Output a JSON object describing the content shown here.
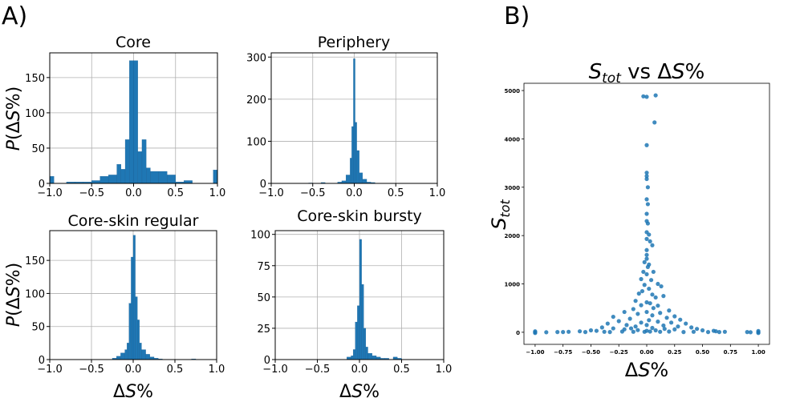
{
  "panel_labels": [
    "A)",
    "B)"
  ],
  "chart_data": [
    {
      "type": "bar",
      "subtype": "histogram",
      "title": "Core",
      "xlabel": "",
      "ylabel": "P(ΔS%)",
      "xlim": [
        -1.0,
        1.0
      ],
      "ylim": [
        0,
        185
      ],
      "xticks": [
        "−1.0",
        "−0.5",
        "0.0",
        "0.5",
        "1.0"
      ],
      "yticks": [
        "0",
        "50",
        "100",
        "150"
      ],
      "grid": true,
      "color": "#1f77b4",
      "bins": [
        {
          "x0": -1.0,
          "x1": -0.95,
          "v": 10
        },
        {
          "x0": -0.8,
          "x1": -0.7,
          "v": 2
        },
        {
          "x0": -0.7,
          "x1": -0.6,
          "v": 2
        },
        {
          "x0": -0.6,
          "x1": -0.5,
          "v": 2
        },
        {
          "x0": -0.5,
          "x1": -0.4,
          "v": 4
        },
        {
          "x0": -0.4,
          "x1": -0.3,
          "v": 10
        },
        {
          "x0": -0.3,
          "x1": -0.2,
          "v": 12
        },
        {
          "x0": -0.2,
          "x1": -0.15,
          "v": 27
        },
        {
          "x0": -0.15,
          "x1": -0.1,
          "v": 20
        },
        {
          "x0": -0.1,
          "x1": -0.05,
          "v": 62
        },
        {
          "x0": -0.05,
          "x1": 0.0,
          "v": 174
        },
        {
          "x0": 0.0,
          "x1": 0.05,
          "v": 174
        },
        {
          "x0": 0.05,
          "x1": 0.1,
          "v": 45
        },
        {
          "x0": 0.1,
          "x1": 0.15,
          "v": 62
        },
        {
          "x0": 0.15,
          "x1": 0.2,
          "v": 22
        },
        {
          "x0": 0.2,
          "x1": 0.3,
          "v": 17
        },
        {
          "x0": 0.3,
          "x1": 0.4,
          "v": 17
        },
        {
          "x0": 0.4,
          "x1": 0.5,
          "v": 12
        },
        {
          "x0": 0.5,
          "x1": 0.6,
          "v": 2
        },
        {
          "x0": 0.6,
          "x1": 0.7,
          "v": 4
        },
        {
          "x0": 0.95,
          "x1": 1.0,
          "v": 19
        }
      ]
    },
    {
      "type": "bar",
      "subtype": "histogram",
      "title": "Periphery",
      "xlabel": "",
      "ylabel": "",
      "xlim": [
        -1.0,
        1.0
      ],
      "ylim": [
        0,
        310
      ],
      "xticks": [
        "−1.0",
        "−0.5",
        "0.0",
        "0.5",
        "1.0"
      ],
      "yticks": [
        "0",
        "100",
        "200",
        "300"
      ],
      "grid": true,
      "color": "#1f77b4",
      "bins": [
        {
          "x0": -0.55,
          "x1": -0.5,
          "v": 1
        },
        {
          "x0": -0.4,
          "x1": -0.35,
          "v": 2
        },
        {
          "x0": -0.2,
          "x1": -0.15,
          "v": 3
        },
        {
          "x0": -0.15,
          "x1": -0.1,
          "v": 6
        },
        {
          "x0": -0.1,
          "x1": -0.05,
          "v": 20
        },
        {
          "x0": -0.05,
          "x1": -0.03,
          "v": 60
        },
        {
          "x0": -0.03,
          "x1": -0.01,
          "v": 135
        },
        {
          "x0": -0.01,
          "x1": 0.01,
          "v": 296
        },
        {
          "x0": 0.01,
          "x1": 0.03,
          "v": 145
        },
        {
          "x0": 0.03,
          "x1": 0.06,
          "v": 78
        },
        {
          "x0": 0.06,
          "x1": 0.1,
          "v": 25
        },
        {
          "x0": 0.1,
          "x1": 0.15,
          "v": 10
        },
        {
          "x0": 0.15,
          "x1": 0.2,
          "v": 3
        },
        {
          "x0": 0.2,
          "x1": 0.25,
          "v": 2
        }
      ]
    },
    {
      "type": "bar",
      "subtype": "histogram",
      "title": "Core-skin regular",
      "xlabel": "ΔS%",
      "ylabel": "P(ΔS%)",
      "xlim": [
        -1.0,
        1.0
      ],
      "ylim": [
        0,
        195
      ],
      "xticks": [
        "−1.0",
        "−0.5",
        "0.0",
        "0.5",
        "1.0"
      ],
      "yticks": [
        "0",
        "50",
        "100",
        "150"
      ],
      "grid": true,
      "color": "#1f77b4",
      "bins": [
        {
          "x0": -0.25,
          "x1": -0.2,
          "v": 2
        },
        {
          "x0": -0.2,
          "x1": -0.15,
          "v": 5
        },
        {
          "x0": -0.15,
          "x1": -0.1,
          "v": 10
        },
        {
          "x0": -0.1,
          "x1": -0.075,
          "v": 15
        },
        {
          "x0": -0.075,
          "x1": -0.05,
          "v": 25
        },
        {
          "x0": -0.05,
          "x1": -0.025,
          "v": 85
        },
        {
          "x0": -0.025,
          "x1": 0.0,
          "v": 155
        },
        {
          "x0": 0.0,
          "x1": 0.025,
          "v": 188
        },
        {
          "x0": 0.025,
          "x1": 0.05,
          "v": 95
        },
        {
          "x0": 0.05,
          "x1": 0.075,
          "v": 60
        },
        {
          "x0": 0.075,
          "x1": 0.1,
          "v": 25
        },
        {
          "x0": 0.1,
          "x1": 0.15,
          "v": 15
        },
        {
          "x0": 0.15,
          "x1": 0.2,
          "v": 8
        },
        {
          "x0": 0.2,
          "x1": 0.25,
          "v": 4
        },
        {
          "x0": 0.25,
          "x1": 0.3,
          "v": 2
        },
        {
          "x0": 0.3,
          "x1": 0.35,
          "v": 1
        },
        {
          "x0": 0.7,
          "x1": 0.75,
          "v": 1
        }
      ]
    },
    {
      "type": "bar",
      "subtype": "histogram",
      "title": "Core-skin bursty",
      "xlabel": "ΔS%",
      "ylabel": "",
      "xlim": [
        -1.0,
        1.0
      ],
      "ylim": [
        0,
        103
      ],
      "xticks": [
        "−1.0",
        "−0.5",
        "0.0",
        "0.5",
        "1.0"
      ],
      "yticks": [
        "0",
        "25",
        "50",
        "75",
        "100"
      ],
      "grid": true,
      "color": "#1f77b4",
      "bins": [
        {
          "x0": -0.15,
          "x1": -0.1,
          "v": 2
        },
        {
          "x0": -0.1,
          "x1": -0.075,
          "v": 3
        },
        {
          "x0": -0.075,
          "x1": -0.05,
          "v": 8
        },
        {
          "x0": -0.05,
          "x1": -0.025,
          "v": 30
        },
        {
          "x0": -0.025,
          "x1": 0.0,
          "v": 43
        },
        {
          "x0": 0.0,
          "x1": 0.025,
          "v": 96
        },
        {
          "x0": 0.025,
          "x1": 0.05,
          "v": 60
        },
        {
          "x0": 0.05,
          "x1": 0.075,
          "v": 25
        },
        {
          "x0": 0.075,
          "x1": 0.1,
          "v": 10
        },
        {
          "x0": 0.1,
          "x1": 0.15,
          "v": 5
        },
        {
          "x0": 0.15,
          "x1": 0.2,
          "v": 3
        },
        {
          "x0": 0.2,
          "x1": 0.25,
          "v": 2
        },
        {
          "x0": 0.25,
          "x1": 0.3,
          "v": 1
        },
        {
          "x0": 0.3,
          "x1": 0.35,
          "v": 1
        },
        {
          "x0": 0.4,
          "x1": 0.45,
          "v": 2
        },
        {
          "x0": 0.45,
          "x1": 0.5,
          "v": 1
        }
      ]
    },
    {
      "type": "scatter",
      "title_parts": {
        "main": "S",
        "sub": "tot",
        "rest": " vs ΔS%"
      },
      "xlabel": "ΔS%",
      "ylabel_parts": {
        "main": "S",
        "sub": "tot"
      },
      "xlim": [
        -1.1,
        1.1
      ],
      "ylim": [
        -250,
        5150
      ],
      "xticks": [
        "−1.00",
        "−0.75",
        "−0.50",
        "−0.25",
        "0.00",
        "0.25",
        "0.50",
        "0.75",
        "1.00"
      ],
      "yticks": [
        "0",
        "1000",
        "2000",
        "3000",
        "4000",
        "5000"
      ],
      "grid": false,
      "color": "#1f77b4",
      "points": [
        [
          -0.03,
          4880
        ],
        [
          0.0,
          4870
        ],
        [
          0.08,
          4900
        ],
        [
          0.07,
          4340
        ],
        [
          0.0,
          3870
        ],
        [
          0.0,
          3300
        ],
        [
          0.0,
          3230
        ],
        [
          0.0,
          3170
        ],
        [
          0.01,
          3000
        ],
        [
          0.0,
          2750
        ],
        [
          0.01,
          2650
        ],
        [
          0.0,
          2450
        ],
        [
          0.0,
          2300
        ],
        [
          0.01,
          2250
        ],
        [
          0.0,
          2070
        ],
        [
          0.02,
          2020
        ],
        [
          0.0,
          1930
        ],
        [
          0.03,
          1880
        ],
        [
          0.05,
          1800
        ],
        [
          0.0,
          1700
        ],
        [
          0.0,
          1600
        ],
        [
          0.0,
          1520
        ],
        [
          -0.02,
          1450
        ],
        [
          0.02,
          1400
        ],
        [
          0.01,
          1350
        ],
        [
          -0.03,
          1250
        ],
        [
          0.06,
          1250
        ],
        [
          0.0,
          1200
        ],
        [
          -0.05,
          1100
        ],
        [
          0.04,
          1080
        ],
        [
          0.1,
          1000
        ],
        [
          -0.02,
          980
        ],
        [
          0.13,
          950
        ],
        [
          0.02,
          900
        ],
        [
          -0.04,
          850
        ],
        [
          -0.07,
          800
        ],
        [
          0.05,
          780
        ],
        [
          0.08,
          720
        ],
        [
          0.15,
          750
        ],
        [
          -0.1,
          650
        ],
        [
          0.0,
          620
        ],
        [
          0.03,
          600
        ],
        [
          -0.05,
          560
        ],
        [
          0.1,
          550
        ],
        [
          0.06,
          500
        ],
        [
          -0.12,
          480
        ],
        [
          0.2,
          450
        ],
        [
          0.0,
          420
        ],
        [
          -0.2,
          420
        ],
        [
          0.12,
          400
        ],
        [
          -0.08,
          380
        ],
        [
          0.05,
          350
        ],
        [
          0.25,
          330
        ],
        [
          -0.3,
          320
        ],
        [
          0.18,
          300
        ],
        [
          -0.15,
          280
        ],
        [
          0.3,
          260
        ],
        [
          0.02,
          250
        ],
        [
          -0.25,
          230
        ],
        [
          0.1,
          220
        ],
        [
          -0.05,
          200
        ],
        [
          0.22,
          200
        ],
        [
          -0.35,
          180
        ],
        [
          0.35,
          180
        ],
        [
          0.0,
          150
        ],
        [
          -0.18,
          150
        ],
        [
          0.15,
          140
        ],
        [
          -0.1,
          120
        ],
        [
          0.28,
          120
        ],
        [
          -0.4,
          100
        ],
        [
          0.4,
          100
        ],
        [
          0.05,
          90
        ],
        [
          -0.3,
          80
        ],
        [
          0.45,
          70
        ],
        [
          -0.2,
          60
        ],
        [
          0.25,
          60
        ],
        [
          -0.5,
          40
        ],
        [
          0.5,
          40
        ],
        [
          0.0,
          30
        ],
        [
          -0.45,
          30
        ],
        [
          0.6,
          30
        ],
        [
          -0.6,
          20
        ],
        [
          0.62,
          20
        ],
        [
          -0.7,
          10
        ],
        [
          0.7,
          10
        ],
        [
          -0.75,
          5
        ],
        [
          -0.8,
          5
        ],
        [
          0.65,
          5
        ],
        [
          0.55,
          5
        ],
        [
          -0.55,
          5
        ],
        [
          0.33,
          5
        ],
        [
          -0.33,
          5
        ],
        [
          0.12,
          10
        ],
        [
          -0.12,
          10
        ],
        [
          0.9,
          5
        ],
        [
          -1.0,
          0
        ],
        [
          -1.0,
          20
        ],
        [
          -1.0,
          -15
        ],
        [
          -0.9,
          0
        ],
        [
          1.0,
          0
        ],
        [
          1.0,
          25
        ],
        [
          1.0,
          -15
        ],
        [
          0.93,
          0
        ],
        [
          -0.02,
          10
        ],
        [
          0.03,
          15
        ],
        [
          0.2,
          15
        ],
        [
          -0.22,
          15
        ],
        [
          0.42,
          10
        ],
        [
          -0.38,
          10
        ],
        [
          0.08,
          40
        ],
        [
          -0.08,
          45
        ],
        [
          0.16,
          70
        ],
        [
          -0.14,
          80
        ]
      ]
    }
  ]
}
